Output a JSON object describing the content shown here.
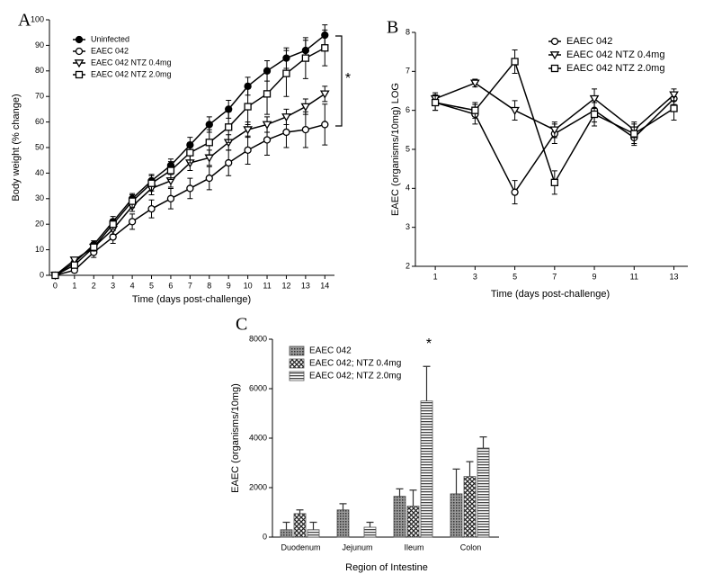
{
  "chart_data": [
    {
      "type": "line",
      "panel": "A",
      "x": [
        0,
        1,
        2,
        3,
        4,
        5,
        6,
        7,
        8,
        9,
        10,
        11,
        12,
        13,
        14
      ],
      "xlim": [
        -0.3,
        14.5
      ],
      "xticks": [
        0,
        1,
        2,
        3,
        4,
        5,
        6,
        7,
        8,
        9,
        10,
        11,
        12,
        13,
        14
      ],
      "ylim": [
        0,
        100
      ],
      "yticks": [
        0,
        10,
        20,
        30,
        40,
        50,
        60,
        70,
        80,
        90,
        100
      ],
      "x_label": "Time (days post-challenge)",
      "y_label": "Body weight (% change)",
      "annotation": "*",
      "series": [
        {
          "name": "Uninfected",
          "color": "#000000",
          "marker": "circle-filled",
          "values": [
            0,
            5,
            12,
            21,
            30,
            37,
            43,
            51,
            59,
            65,
            74,
            80,
            85,
            88,
            94
          ],
          "errors": [
            1,
            1,
            1.5,
            2,
            2,
            2.5,
            2.5,
            3,
            3,
            3.5,
            3.5,
            4,
            4,
            4,
            4
          ]
        },
        {
          "name": "EAEC 042",
          "color": "#000000",
          "marker": "circle",
          "values": [
            0,
            2,
            9,
            15,
            21,
            26,
            30,
            34,
            38,
            44,
            49,
            53,
            56,
            57,
            59
          ],
          "errors": [
            1,
            1,
            2,
            2.5,
            3,
            3.5,
            4,
            4,
            4.5,
            5,
            5.5,
            6,
            6,
            7,
            8
          ]
        },
        {
          "name": "EAEC 042 NTZ 0.4mg",
          "color": "#000000",
          "marker": "triangle",
          "values": [
            0,
            6,
            11,
            18,
            27,
            34,
            37,
            44,
            46,
            52,
            57,
            59,
            62,
            66,
            71
          ],
          "errors": [
            1,
            1,
            1.5,
            2,
            2,
            2.5,
            2.5,
            3,
            3,
            3,
            3,
            3,
            3,
            3,
            3
          ]
        },
        {
          "name": "EAEC 042 NTZ 2.0mg",
          "color": "#000000",
          "marker": "square",
          "values": [
            0,
            4,
            11,
            20,
            29,
            36,
            41,
            48,
            52,
            58,
            66,
            71,
            79,
            85,
            89
          ],
          "errors": [
            1,
            1,
            1.5,
            2,
            2.5,
            3,
            3.5,
            4,
            5,
            6,
            7,
            8,
            9,
            8,
            7
          ]
        }
      ]
    },
    {
      "type": "line",
      "panel": "B",
      "x": [
        1,
        3,
        5,
        7,
        9,
        11,
        13
      ],
      "xlim": [
        0,
        13.7
      ],
      "xticks": [
        1,
        3,
        5,
        7,
        9,
        11,
        13
      ],
      "ylim": [
        2,
        8
      ],
      "yticks": [
        2,
        3,
        4,
        5,
        6,
        7,
        8
      ],
      "x_label": "Time (days post-challenge)",
      "y_label": "EAEC (organisms/10mg) LOG",
      "series": [
        {
          "name": "EAEC 042",
          "color": "#000000",
          "marker": "circle",
          "values": [
            6.2,
            5.9,
            3.9,
            5.4,
            6.0,
            5.3,
            6.3
          ],
          "errors": [
            0.2,
            0.25,
            0.3,
            0.25,
            0.3,
            0.2,
            0.15
          ]
        },
        {
          "name": "EAEC 042 NTZ 0.4mg",
          "color": "#000000",
          "marker": "triangle",
          "values": [
            6.3,
            6.7,
            6.0,
            5.5,
            6.3,
            5.5,
            6.4
          ],
          "errors": [
            0.15,
            0.1,
            0.25,
            0.2,
            0.25,
            0.2,
            0.15
          ]
        },
        {
          "name": "EAEC 042 NTZ 2.0mg",
          "color": "#000000",
          "marker": "square",
          "values": [
            6.2,
            6.0,
            7.25,
            4.15,
            5.9,
            5.4,
            6.05
          ],
          "errors": [
            0.2,
            0.2,
            0.3,
            0.3,
            0.3,
            0.25,
            0.3
          ]
        }
      ]
    },
    {
      "type": "bar",
      "panel": "C",
      "categories": [
        "Duodenum",
        "Jejunum",
        "Ileum",
        "Colon"
      ],
      "ylim": [
        0,
        8000
      ],
      "yticks": [
        0,
        2000,
        4000,
        6000,
        8000
      ],
      "x_label": "Region of Intestine",
      "y_label": "EAEC (organisms/10mg)",
      "annotation": "*",
      "series": [
        {
          "name": "EAEC 042",
          "color": "#555555",
          "pattern": "dots",
          "values": [
            300,
            1100,
            1650,
            1750
          ],
          "errors": [
            300,
            250,
            300,
            1000
          ]
        },
        {
          "name": "EAEC 042; NTZ 0.4mg",
          "color": "#555555",
          "pattern": "crosshatch",
          "values": [
            950,
            null,
            1250,
            2450
          ],
          "errors": [
            150,
            null,
            650,
            600
          ]
        },
        {
          "name": "EAEC 042; NTZ 2.0mg",
          "color": "#555555",
          "pattern": "hstripes",
          "values": [
            300,
            400,
            5500,
            3600
          ],
          "errors": [
            300,
            200,
            1400,
            450
          ]
        }
      ]
    }
  ]
}
